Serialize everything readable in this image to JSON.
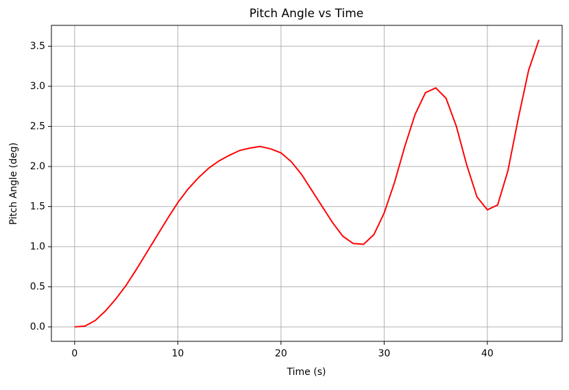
{
  "chart_data": {
    "type": "line",
    "title": "Pitch Angle vs Time",
    "x_label": "Time (s)",
    "y_label": "Pitch Angle (deg)",
    "x": [
      0,
      1,
      2,
      3,
      4,
      5,
      6,
      7,
      8,
      9,
      10,
      11,
      12,
      13,
      14,
      15,
      16,
      17,
      18,
      19,
      20,
      21,
      22,
      23,
      24,
      25,
      26,
      27,
      28,
      29,
      30,
      31,
      32,
      33,
      34,
      35,
      36,
      37,
      38,
      39,
      40,
      41,
      42,
      43,
      44,
      45
    ],
    "series": [
      {
        "color": "#ff0000",
        "values": [
          0,
          0.01,
          0.08,
          0.2,
          0.35,
          0.52,
          0.72,
          0.93,
          1.14,
          1.35,
          1.55,
          1.72,
          1.86,
          1.98,
          2.07,
          2.14,
          2.2,
          2.23,
          2.25,
          2.22,
          2.17,
          2.06,
          1.9,
          1.7,
          1.5,
          1.3,
          1.13,
          1.04,
          1.03,
          1.15,
          1.42,
          1.8,
          2.25,
          2.65,
          2.92,
          2.98,
          2.85,
          2.5,
          2.02,
          1.62,
          1.46,
          1.52,
          1.95,
          2.6,
          3.2,
          3.58
        ]
      }
    ],
    "xlim": [
      -2.25,
      47.25
    ],
    "ylim": [
      -0.18,
      3.76
    ],
    "xticks": [
      0,
      10,
      20,
      30,
      40
    ],
    "yticks": [
      {
        "value": 0,
        "label": "0.0"
      },
      0.5,
      {
        "value": 1,
        "label": "1.0"
      },
      1.5,
      {
        "value": 2,
        "label": "2.0"
      },
      2.5,
      {
        "value": 3,
        "label": "3.0"
      },
      3.5
    ],
    "grid": true
  }
}
